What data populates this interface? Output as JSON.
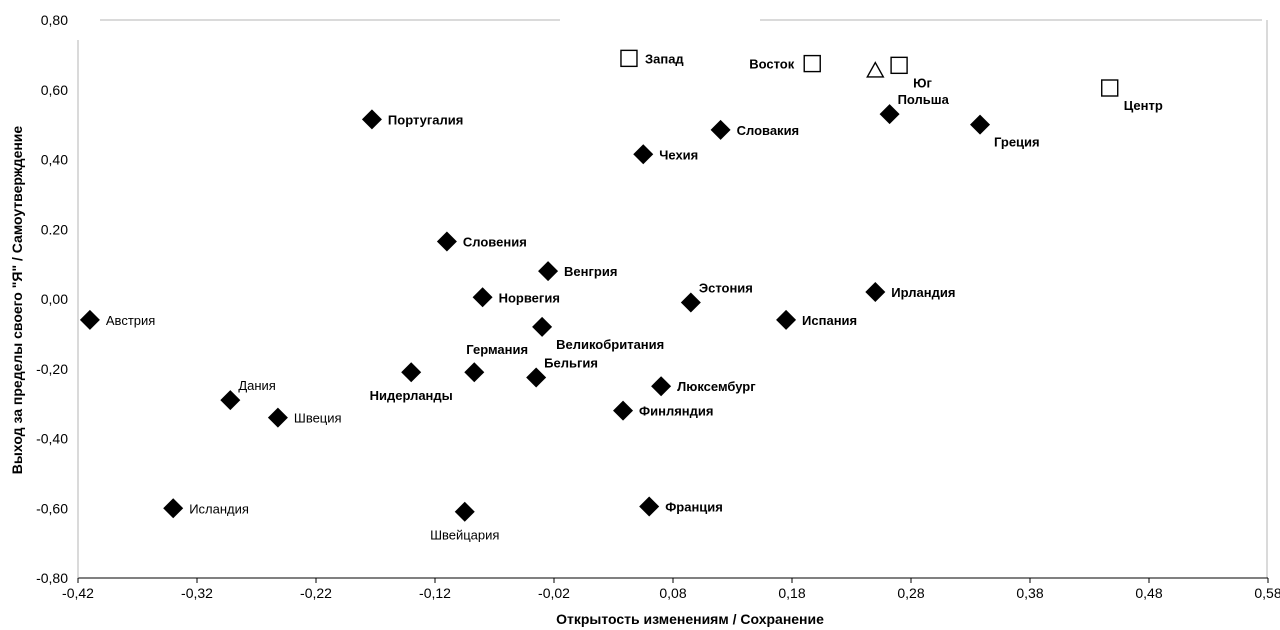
{
  "chart_data": {
    "type": "scatter",
    "title": "",
    "xlabel": "Открытость изменениям / Сохранение",
    "ylabel": "Выход за пределы своего \"Я\" / Самоутверждение",
    "xlim": [
      -0.42,
      0.58
    ],
    "ylim": [
      -0.8,
      0.8
    ],
    "grid": false,
    "x_ticks": [
      "-0,42",
      "-0,32",
      "-0,22",
      "-0,12",
      "-0,02",
      "0,08",
      "0,18",
      "0,28",
      "0,38",
      "0,48",
      "0,58"
    ],
    "y_ticks": [
      "0,80",
      "0,60",
      "0,40",
      "0.20",
      "0,00",
      "-0,20",
      "-0,40",
      "-0,60",
      "-0,80"
    ],
    "series": [
      {
        "marker": "diamond",
        "color": "#000000",
        "points": [
          {
            "label": "Австрия",
            "x": -0.41,
            "y": -0.06,
            "anchor": "right",
            "bold": false
          },
          {
            "label": "Исландия",
            "x": -0.34,
            "y": -0.6,
            "anchor": "right",
            "bold": false
          },
          {
            "label": "Дания",
            "x": -0.292,
            "y": -0.29,
            "anchor": "above-right",
            "bold": false
          },
          {
            "label": "Швеция",
            "x": -0.252,
            "y": -0.34,
            "anchor": "right",
            "bold": false
          },
          {
            "label": "Португалия",
            "x": -0.173,
            "y": 0.515,
            "anchor": "right",
            "bold": true
          },
          {
            "label": "Нидерланды",
            "x": -0.14,
            "y": -0.21,
            "anchor": "below",
            "bold": true
          },
          {
            "label": "Германия",
            "x": -0.087,
            "y": -0.21,
            "anchor": "above-left",
            "bold": true
          },
          {
            "label": "Словения",
            "x": -0.11,
            "y": 0.165,
            "anchor": "right",
            "bold": true
          },
          {
            "label": "Норвегия",
            "x": -0.08,
            "y": 0.005,
            "anchor": "right",
            "bold": true
          },
          {
            "label": "Швейцария",
            "x": -0.095,
            "y": -0.61,
            "anchor": "below",
            "bold": false
          },
          {
            "label": "Венгрия",
            "x": -0.025,
            "y": 0.08,
            "anchor": "right",
            "bold": true
          },
          {
            "label": "Великобритания",
            "x": -0.03,
            "y": -0.08,
            "anchor": "below-right",
            "bold": true
          },
          {
            "label": "Бельгия",
            "x": -0.035,
            "y": -0.225,
            "anchor": "above-right",
            "bold": true
          },
          {
            "label": "Финляндия",
            "x": 0.038,
            "y": -0.32,
            "anchor": "right",
            "bold": true
          },
          {
            "label": "Чехия",
            "x": 0.055,
            "y": 0.415,
            "anchor": "right",
            "bold": true
          },
          {
            "label": "Франция",
            "x": 0.06,
            "y": -0.595,
            "anchor": "right",
            "bold": true
          },
          {
            "label": "Люксембург",
            "x": 0.07,
            "y": -0.25,
            "anchor": "right",
            "bold": true
          },
          {
            "label": "Эстония",
            "x": 0.095,
            "y": -0.01,
            "anchor": "above-right",
            "bold": true
          },
          {
            "label": "Словакия",
            "x": 0.12,
            "y": 0.485,
            "anchor": "right",
            "bold": true
          },
          {
            "label": "Испания",
            "x": 0.175,
            "y": -0.06,
            "anchor": "right",
            "bold": true
          },
          {
            "label": "Ирландия",
            "x": 0.25,
            "y": 0.02,
            "anchor": "right",
            "bold": true
          },
          {
            "label": "Польша",
            "x": 0.262,
            "y": 0.53,
            "anchor": "above-right",
            "bold": true
          },
          {
            "label": "Греция",
            "x": 0.338,
            "y": 0.5,
            "anchor": "below-right",
            "bold": true
          }
        ]
      },
      {
        "marker": "square-open",
        "color": "#000000",
        "points": [
          {
            "label": "Запад",
            "x": 0.043,
            "y": 0.69,
            "anchor": "right",
            "bold": true
          },
          {
            "label": "Восток",
            "x": 0.197,
            "y": 0.675,
            "anchor": "left",
            "bold": true
          },
          {
            "label": "Юг",
            "x": 0.27,
            "y": 0.67,
            "anchor": "below-right",
            "bold": true
          },
          {
            "label": "Центр",
            "x": 0.447,
            "y": 0.605,
            "anchor": "below-right",
            "bold": true
          }
        ]
      },
      {
        "marker": "triangle-open",
        "color": "#000000",
        "points": [
          {
            "label": "",
            "x": 0.25,
            "y": 0.655,
            "anchor": "none",
            "bold": false
          }
        ]
      }
    ]
  }
}
